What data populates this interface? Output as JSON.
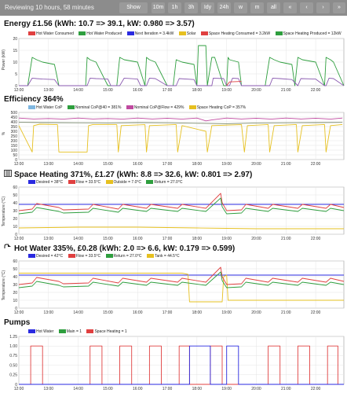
{
  "topbar": {
    "status": "Reviewing 10 hours, 58 minutes",
    "buttons": [
      "Show Latest",
      "10m",
      "1h",
      "3h",
      "Idy",
      "24h",
      "w",
      "m",
      "all",
      "«",
      "‹",
      "›",
      "»"
    ]
  },
  "x_ticks": [
    "12:00",
    "13:00",
    "14:00",
    "15:00",
    "16:00",
    "17:00",
    "18:00",
    "19:00",
    "20:00",
    "21:00",
    "22:00"
  ],
  "sections": [
    {
      "title": "Energy £1.56 (kWh: 10.7 => 39.1, kW: 0.980 => 3.57)",
      "legend": [
        {
          "label": "Hot Water Consumed",
          "color": "#e04040"
        },
        {
          "label": "Hot Water Produced",
          "color": "#2e9e3e"
        },
        {
          "label": "Next Iteration = 3.4kW",
          "color": "#2a2ae0"
        },
        {
          "label": "Solar",
          "color": "#e6c020"
        },
        {
          "label": "Space Heating Consumed = 3.2kW",
          "color": "#e04040"
        },
        {
          "label": "Space Heating Produced = 12kW",
          "color": "#2e9e3e"
        }
      ]
    },
    {
      "title": "Efficiency 364%",
      "legend": [
        {
          "label": "Hot Water CoP",
          "color": "#7fb7e0"
        },
        {
          "label": "Nominal CoP@40 = 381%",
          "color": "#2e9e3e"
        },
        {
          "label": "Nominal CoP@Flow = 429%",
          "color": "#c04aa0"
        },
        {
          "label": "Space Heating CoP = 357%",
          "color": "#e6c020"
        }
      ]
    },
    {
      "title": "Space Heating 371%, £1.27 (kWh: 8.8 => 32.6, kW: 0.801 => 2.97)",
      "legend": [
        {
          "label": "Desired = 38°C",
          "color": "#2a2ae0"
        },
        {
          "label": "Flow = 33.5°C",
          "color": "#e04040"
        },
        {
          "label": "Outside = 7.0°C",
          "color": "#e6c020"
        },
        {
          "label": "Return = 27.0°C",
          "color": "#2e9e3e"
        }
      ]
    },
    {
      "title": "Hot Water 335%, £0.28 (kWh: 2.0 => 6.6, kW: 0.179 => 0.599)",
      "legend": [
        {
          "label": "Desired = 42°C",
          "color": "#2a2ae0"
        },
        {
          "label": "Flow = 33.5°C",
          "color": "#e04040"
        },
        {
          "label": "Return = 27.0°C",
          "color": "#2e9e3e"
        },
        {
          "label": "Tank = 44.5°C",
          "color": "#e6c020"
        }
      ]
    },
    {
      "title": "Pumps",
      "legend": [
        {
          "label": "Hot Water",
          "color": "#2a2ae0"
        },
        {
          "label": "Main = 1",
          "color": "#2e9e3e"
        },
        {
          "label": "Space Heating = 1",
          "color": "#e04040"
        }
      ]
    }
  ],
  "chart_data": [
    {
      "type": "line",
      "ylabel": "Power (kW)",
      "ylim": [
        0,
        20
      ],
      "yticks": [
        "0",
        "5",
        "10",
        "15",
        "20"
      ],
      "series": [
        {
          "name": "Space Heating Produced = 12kW",
          "color": "#2e9e3e",
          "x": [
            12.0,
            12.3,
            12.45,
            12.6,
            12.8,
            13.2,
            13.35,
            13.5,
            14.0,
            14.25,
            14.3,
            14.4,
            14.6,
            15.0,
            15.3,
            15.4,
            15.55,
            16.0,
            16.25,
            16.3,
            16.4,
            16.6,
            17.0,
            17.2,
            17.3,
            17.5,
            17.9,
            18.0,
            18.05,
            18.3,
            18.35,
            18.5,
            18.6,
            18.9,
            19.0,
            19.05,
            19.1,
            19.4,
            19.5,
            19.6,
            19.9,
            20.3,
            20.45,
            20.6,
            20.8,
            21.2,
            21.3,
            21.4,
            21.55,
            22.0,
            22.3,
            22.35,
            22.5,
            22.6,
            22.95
          ],
          "values": [
            0,
            0,
            12,
            11,
            10,
            9,
            0,
            0,
            0,
            0,
            12,
            11,
            10,
            0,
            0,
            12,
            11,
            10,
            0,
            12,
            11,
            10,
            0,
            0,
            11,
            10,
            9,
            0,
            17,
            17,
            0,
            12,
            12,
            0,
            0,
            12,
            11,
            10,
            0,
            0,
            0,
            0,
            12,
            11,
            10,
            9,
            0,
            12,
            11,
            10,
            0,
            12,
            11,
            10,
            0
          ]
        },
        {
          "name": "Space Heating Consumed = 3.2kW",
          "color": "#8a5ab0",
          "x": [
            12.0,
            12.3,
            12.45,
            12.6,
            12.8,
            13.2,
            13.35,
            14.3,
            14.4,
            14.6,
            15.0,
            15.1,
            15.4,
            15.55,
            16.0,
            16.1,
            16.3,
            16.4,
            16.6,
            17.0,
            17.3,
            17.4,
            17.9,
            18.0,
            18.5,
            18.55,
            18.9,
            19.0,
            19.1,
            19.2,
            19.4,
            19.5,
            20.45,
            20.55,
            20.8,
            21.2,
            21.4,
            21.5,
            22.0,
            22.3,
            22.35,
            22.45,
            22.6,
            22.95
          ],
          "values": [
            0,
            0,
            3.2,
            3,
            2.8,
            2.6,
            0,
            0,
            3.2,
            3,
            2.8,
            0,
            0,
            3.2,
            2.8,
            0,
            0,
            3.2,
            3,
            0,
            0,
            3,
            2.6,
            0,
            0,
            3.2,
            3,
            0,
            0,
            3.2,
            3,
            0,
            0,
            3.2,
            3,
            2.6,
            0,
            3,
            2.8,
            0,
            0,
            3.2,
            3,
            0
          ]
        },
        {
          "name": "Hot Water Consumed",
          "color": "#e04040",
          "x": [
            19.0,
            19.1,
            19.5
          ],
          "values": [
            0,
            1.6,
            1.8
          ]
        }
      ]
    },
    {
      "type": "line",
      "ylabel": "%",
      "ylim": [
        0,
        500
      ],
      "yticks": [
        "0",
        "50",
        "100",
        "150",
        "200",
        "250",
        "300",
        "350",
        "400",
        "450",
        "500"
      ],
      "series": [
        {
          "name": "Nominal CoP@40 = 381%",
          "color": "#7a8a70",
          "x": [
            12.0,
            13.0,
            14.0,
            15.0,
            16.0,
            17.0,
            18.0,
            19.0,
            20.0,
            21.0,
            22.0,
            22.9
          ],
          "values": [
            395,
            392,
            390,
            388,
            392,
            390,
            385,
            380,
            388,
            390,
            392,
            394
          ]
        },
        {
          "name": "Nominal CoP@Flow = 429%",
          "color": "#c04aa0",
          "x": [
            12.0,
            12.5,
            13.0,
            13.5,
            14.0,
            14.5,
            15.0,
            15.5,
            16.0,
            16.5,
            17.0,
            17.5,
            18.0,
            18.3,
            18.5,
            19.0,
            19.5,
            20.0,
            20.5,
            21.0,
            21.5,
            22.0,
            22.5,
            22.9
          ],
          "values": [
            440,
            430,
            435,
            428,
            440,
            430,
            435,
            428,
            440,
            430,
            438,
            428,
            440,
            410,
            420,
            440,
            430,
            438,
            428,
            440,
            430,
            438,
            428,
            440
          ]
        },
        {
          "name": "Space Heating CoP = 357%",
          "color": "#e6c020",
          "x": [
            12.0,
            12.45,
            12.5,
            12.7,
            13.3,
            13.35,
            14.3,
            14.35,
            14.5,
            15.3,
            15.35,
            15.45,
            16.25,
            16.3,
            16.4,
            17.3,
            17.35,
            17.5,
            18.3,
            18.35,
            18.5,
            19.5,
            19.6,
            19.7,
            20.4,
            20.45,
            20.6,
            21.35,
            21.4,
            21.55,
            22.3,
            22.35,
            22.5,
            22.9
          ],
          "values": [
            360,
            80,
            360,
            375,
            370,
            80,
            80,
            360,
            372,
            370,
            80,
            360,
            370,
            80,
            360,
            372,
            80,
            360,
            300,
            80,
            360,
            370,
            80,
            360,
            372,
            80,
            360,
            372,
            80,
            360,
            372,
            80,
            360,
            372
          ]
        }
      ]
    },
    {
      "type": "line",
      "ylabel": "Temperature (°C)",
      "ylim": [
        0,
        60
      ],
      "yticks": [
        "0",
        "10",
        "20",
        "30",
        "40",
        "50",
        "60"
      ],
      "series": [
        {
          "name": "Desired = 38°C",
          "color": "#2a2ae0",
          "x": [
            12.0,
            22.95
          ],
          "values": [
            38,
            38
          ]
        },
        {
          "name": "Flow = 33.5°C",
          "color": "#e04040",
          "x": [
            12.0,
            12.45,
            12.6,
            13.35,
            13.5,
            14.35,
            14.5,
            15.35,
            15.5,
            16.3,
            16.45,
            17.35,
            17.5,
            18.3,
            18.8,
            18.85,
            19.0,
            19.5,
            19.65,
            20.4,
            20.55,
            21.4,
            21.55,
            22.35,
            22.5,
            22.95
          ],
          "values": [
            30,
            32,
            39,
            34,
            31,
            32,
            38,
            32,
            38,
            33,
            38,
            33,
            38,
            33,
            52,
            40,
            30,
            31,
            38,
            33,
            38,
            33,
            38,
            33,
            38,
            34
          ]
        },
        {
          "name": "Return = 27.0°C",
          "color": "#2e9e3e",
          "x": [
            12.0,
            12.45,
            12.6,
            13.35,
            13.5,
            14.35,
            14.5,
            15.35,
            15.5,
            16.3,
            16.45,
            17.35,
            17.5,
            18.3,
            18.8,
            18.85,
            19.0,
            19.5,
            19.65,
            20.4,
            20.55,
            21.4,
            21.55,
            22.35,
            22.5,
            22.95
          ],
          "values": [
            26,
            28,
            34,
            29,
            27,
            28,
            33,
            28,
            33,
            29,
            33,
            29,
            33,
            29,
            46,
            35,
            26,
            27,
            33,
            29,
            33,
            29,
            33,
            29,
            33,
            30
          ]
        },
        {
          "name": "Outside = 7.0°C",
          "color": "#e6c020",
          "x": [
            12.0,
            14.0,
            16.0,
            17.0,
            18.0,
            19.0,
            20.0,
            22.0,
            22.95
          ],
          "values": [
            8,
            9,
            9,
            8.5,
            8,
            7.5,
            7,
            7,
            7
          ]
        }
      ]
    },
    {
      "type": "line",
      "ylabel": "Temperature (°C)",
      "ylim": [
        0,
        60
      ],
      "yticks": [
        "0",
        "10",
        "20",
        "30",
        "40",
        "50",
        "60"
      ],
      "series": [
        {
          "name": "Desired = 42°C",
          "color": "#2a2ae0",
          "x": [
            12.0,
            22.95
          ],
          "values": [
            42,
            42
          ]
        },
        {
          "name": "Tank = 44.5°C",
          "color": "#e6c020",
          "x": [
            12.0,
            17.5,
            17.7,
            17.75,
            18.85,
            18.9,
            19.0,
            19.05,
            22.95
          ],
          "values": [
            44.5,
            44.5,
            43,
            8,
            8,
            40,
            42,
            10,
            10
          ]
        },
        {
          "name": "Flow = 33.5°C",
          "color": "#e04040",
          "x": [
            12.0,
            12.45,
            12.6,
            13.35,
            13.5,
            14.35,
            14.5,
            15.35,
            15.5,
            16.3,
            16.45,
            17.35,
            17.5,
            18.3,
            18.8,
            18.85,
            19.0,
            19.5,
            19.65,
            20.4,
            20.55,
            21.4,
            21.55,
            22.35,
            22.5,
            22.95
          ],
          "values": [
            30,
            32,
            39,
            34,
            31,
            32,
            38,
            32,
            38,
            33,
            38,
            33,
            38,
            33,
            52,
            40,
            30,
            31,
            38,
            33,
            38,
            33,
            38,
            33,
            38,
            34
          ]
        },
        {
          "name": "Return = 27.0°C",
          "color": "#2e9e3e",
          "x": [
            12.0,
            12.45,
            12.6,
            13.35,
            13.5,
            14.35,
            14.5,
            15.35,
            15.5,
            16.3,
            16.45,
            17.35,
            17.5,
            18.3,
            18.8,
            18.85,
            19.0,
            19.5,
            19.65,
            20.4,
            20.55,
            21.4,
            21.55,
            22.35,
            22.5,
            22.95
          ],
          "values": [
            26,
            28,
            34,
            29,
            27,
            28,
            33,
            28,
            33,
            29,
            33,
            29,
            33,
            29,
            46,
            35,
            26,
            27,
            33,
            29,
            33,
            29,
            33,
            29,
            33,
            30
          ]
        }
      ]
    },
    {
      "type": "line",
      "ylim": [
        0,
        1.25
      ],
      "yticks": [
        "0",
        "0.25",
        "0.50",
        "0.75",
        "1.00",
        "1.25"
      ],
      "series": [
        {
          "name": "Space Heating = 1",
          "color": "#e04040",
          "x": [
            12.0,
            12.4,
            12.4,
            12.8,
            12.8,
            14.4,
            14.4,
            14.8,
            14.8,
            15.4,
            15.4,
            15.8,
            15.8,
            16.4,
            16.4,
            16.8,
            16.8,
            17.4,
            17.4,
            17.75,
            17.75,
            18.45,
            18.45,
            18.85,
            18.85,
            20.4,
            20.4,
            20.8,
            20.8,
            21.4,
            21.4,
            21.8,
            21.8,
            22.4,
            22.4,
            22.75,
            22.75,
            22.95
          ],
          "values": [
            0,
            0,
            1,
            1,
            0,
            0,
            1,
            1,
            0,
            0,
            1,
            1,
            0,
            0,
            1,
            1,
            0,
            0,
            1,
            1,
            0,
            0,
            1,
            1,
            0,
            0,
            1,
            1,
            0,
            0,
            1,
            1,
            0,
            0,
            1,
            1,
            0,
            0
          ]
        },
        {
          "name": "Hot Water",
          "color": "#2a2ae0",
          "x": [
            12.0,
            17.75,
            17.75,
            18.45,
            18.45,
            19.0,
            19.0,
            19.4,
            19.4,
            22.95
          ],
          "values": [
            0,
            0,
            1,
            1,
            0,
            0,
            1,
            1,
            0,
            0
          ]
        }
      ]
    }
  ]
}
